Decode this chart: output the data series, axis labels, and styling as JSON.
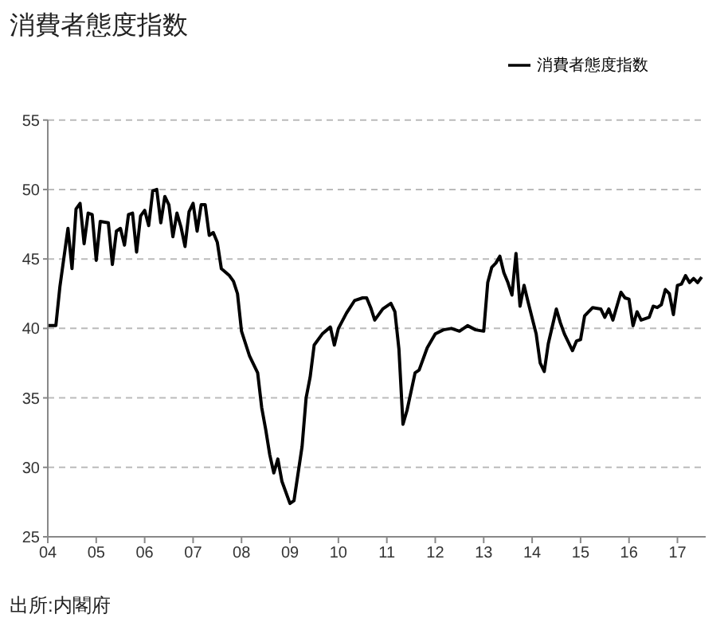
{
  "chart_data": {
    "type": "line",
    "title": "消費者態度指数",
    "annotations": [
      "出所:内閣府"
    ],
    "x": [
      "2004-01",
      "2004-03",
      "2004-04",
      "2004-06",
      "2004-07",
      "2004-08",
      "2004-09",
      "2004-10",
      "2004-11",
      "2004-12",
      "2005-01",
      "2005-02",
      "2005-04",
      "2005-05",
      "2005-06",
      "2005-07",
      "2005-08",
      "2005-09",
      "2005-10",
      "2005-11",
      "2005-12",
      "2006-01",
      "2006-02",
      "2006-03",
      "2006-04",
      "2006-05",
      "2006-06",
      "2006-07",
      "2006-08",
      "2006-09",
      "2006-10",
      "2006-11",
      "2006-12",
      "2007-01",
      "2007-02",
      "2007-03",
      "2007-04",
      "2007-05",
      "2007-06",
      "2007-07",
      "2007-08",
      "2007-10",
      "2007-11",
      "2007-12",
      "2008-01",
      "2008-03",
      "2008-05",
      "2008-06",
      "2008-07",
      "2008-08",
      "2008-09",
      "2008-10",
      "2008-11",
      "2009-01",
      "2009-02",
      "2009-04",
      "2009-05",
      "2009-06",
      "2009-07",
      "2009-09",
      "2009-11",
      "2009-12",
      "2010-01",
      "2010-03",
      "2010-05",
      "2010-07",
      "2010-08",
      "2010-09",
      "2010-10",
      "2010-12",
      "2011-02",
      "2011-03",
      "2011-04",
      "2011-05",
      "2011-06",
      "2011-08",
      "2011-09",
      "2011-11",
      "2012-01",
      "2012-03",
      "2012-05",
      "2012-07",
      "2012-09",
      "2012-11",
      "2013-01",
      "2013-02",
      "2013-03",
      "2013-04",
      "2013-05",
      "2013-06",
      "2013-07",
      "2013-08",
      "2013-09",
      "2013-10",
      "2013-11",
      "2013-12",
      "2014-02",
      "2014-03",
      "2014-04",
      "2014-05",
      "2014-07",
      "2014-08",
      "2014-09",
      "2014-11",
      "2014-12",
      "2015-01",
      "2015-02",
      "2015-04",
      "2015-06",
      "2015-07",
      "2015-08",
      "2015-09",
      "2015-11",
      "2015-12",
      "2016-01",
      "2016-02",
      "2016-03",
      "2016-04",
      "2016-06",
      "2016-07",
      "2016-08",
      "2016-09",
      "2016-10",
      "2016-11",
      "2016-12",
      "2017-01",
      "2017-02",
      "2017-03",
      "2017-04",
      "2017-05",
      "2017-06",
      "2017-07"
    ],
    "series": [
      {
        "name": "消費者態度指数",
        "color": "#000000",
        "values": [
          40.2,
          40.2,
          43,
          47.2,
          44.3,
          48.6,
          49.0,
          46.1,
          48.3,
          48.2,
          44.9,
          47.7,
          47.6,
          44.6,
          47.0,
          47.2,
          46.0,
          48.2,
          48.3,
          45.5,
          48.1,
          48.5,
          47.4,
          49.9,
          50.0,
          47.6,
          49.5,
          48.9,
          46.6,
          48.3,
          47.3,
          45.9,
          48.4,
          49.0,
          47.0,
          48.9,
          48.9,
          46.7,
          46.9,
          46.2,
          44.3,
          43.8,
          43.4,
          42.5,
          39.8,
          38.0,
          36.8,
          34.3,
          32.7,
          30.9,
          29.6,
          30.6,
          29.0,
          27.4,
          27.6,
          31.5,
          35.0,
          36.5,
          38.8,
          39.6,
          40.1,
          38.8,
          40.0,
          41.1,
          42.0,
          42.2,
          42.2,
          41.5,
          40.6,
          41.4,
          41.8,
          41.2,
          38.5,
          33.1,
          34.1,
          36.8,
          37.0,
          38.6,
          39.6,
          39.9,
          40.0,
          39.8,
          40.2,
          39.9,
          39.8,
          43.3,
          44.4,
          44.7,
          45.2,
          44.0,
          43.3,
          42.4,
          45.4,
          41.6,
          43.1,
          41.9,
          39.6,
          37.5,
          36.9,
          38.9,
          41.4,
          40.4,
          39.6,
          38.4,
          39.1,
          39.2,
          40.9,
          41.5,
          41.4,
          40.8,
          41.4,
          40.6,
          42.6,
          42.2,
          42.1,
          40.2,
          41.2,
          40.6,
          40.8,
          41.6,
          41.5,
          41.7,
          42.8,
          42.5,
          41.0,
          43.1,
          43.2,
          43.8,
          43.3,
          43.6,
          43.3,
          43.7
        ]
      }
    ],
    "xlim": [
      "2004-01",
      "2017-08"
    ],
    "xticks": [
      {
        "value": "2004",
        "label": "04"
      },
      {
        "value": "2005",
        "label": "05"
      },
      {
        "value": "2006",
        "label": "06"
      },
      {
        "value": "2007",
        "label": "07"
      },
      {
        "value": "2008",
        "label": "08"
      },
      {
        "value": "2009",
        "label": "09"
      },
      {
        "value": "2010",
        "label": "10"
      },
      {
        "value": "2011",
        "label": "11"
      },
      {
        "value": "2012",
        "label": "12"
      },
      {
        "value": "2013",
        "label": "13"
      },
      {
        "value": "2014",
        "label": "14"
      },
      {
        "value": "2015",
        "label": "15"
      },
      {
        "value": "2016",
        "label": "16"
      },
      {
        "value": "2017",
        "label": "17"
      }
    ],
    "ylim": [
      25,
      55
    ],
    "yticks": [
      25,
      30,
      35,
      40,
      45,
      50,
      55
    ],
    "grid": "y",
    "legend": "top right",
    "marker": "none",
    "line_style": "solid"
  }
}
